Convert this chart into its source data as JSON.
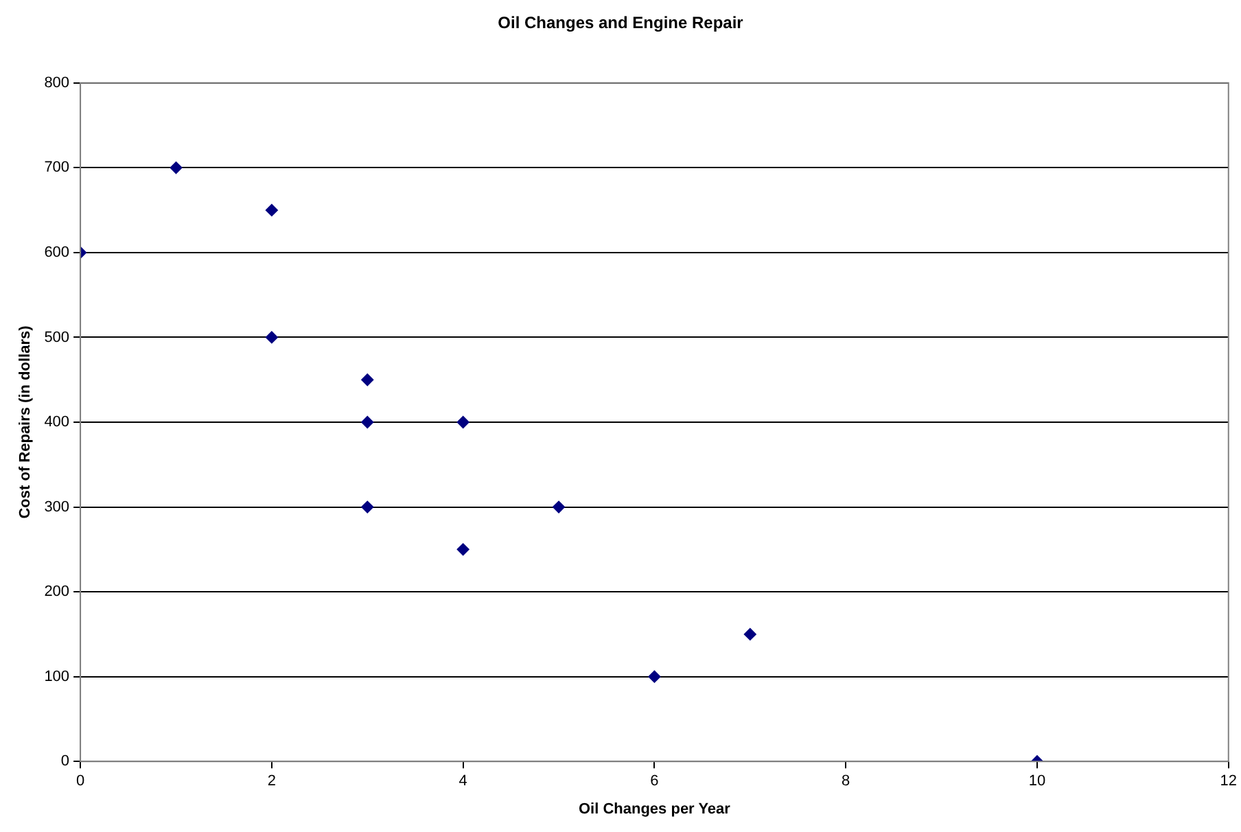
{
  "chart_data": {
    "type": "scatter",
    "title": "Oil Changes and Engine Repair",
    "xlabel": "Oil Changes per Year",
    "ylabel": "Cost of Repairs (in dollars)",
    "series": [
      {
        "color": "#000080",
        "x": [
          0,
          1,
          2,
          2,
          3,
          3,
          3,
          4,
          4,
          5,
          6,
          7,
          10
        ],
        "values": [
          600,
          700,
          650,
          500,
          450,
          400,
          300,
          400,
          250,
          300,
          100,
          150,
          0
        ]
      }
    ],
    "xlim": [
      0,
      12
    ],
    "xticks": [
      0,
      2,
      4,
      6,
      8,
      10,
      12
    ],
    "ylim": [
      0,
      800
    ],
    "yticks": [
      0,
      100,
      200,
      300,
      400,
      500,
      600,
      700,
      800
    ],
    "grid": "y",
    "legend": false,
    "marker": "diamond"
  }
}
